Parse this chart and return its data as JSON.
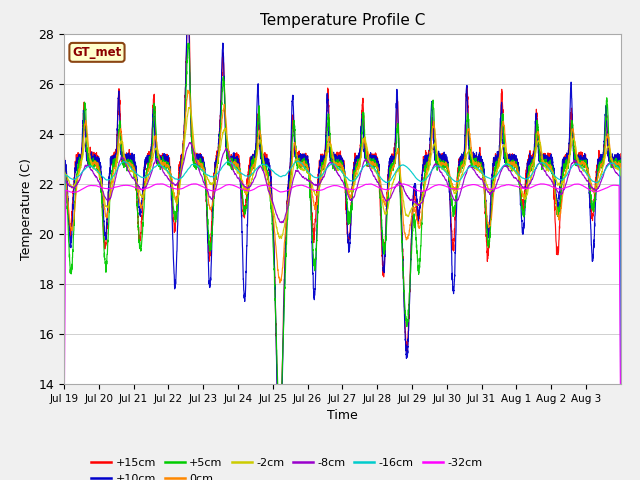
{
  "title": "Temperature Profile C",
  "xlabel": "Time",
  "ylabel": "Temperature (C)",
  "ylim": [
    14,
    28
  ],
  "n_days": 16,
  "base_temp": 23.0,
  "xtick_labels": [
    "Jul 19",
    "Jul 20",
    "Jul 21",
    "Jul 22",
    "Jul 23",
    "Jul 24",
    "Jul 25",
    "Jul 26",
    "Jul 27",
    "Jul 28",
    "Jul 29",
    "Jul 30",
    "Jul 31",
    "Aug 1",
    "Aug 2",
    "Aug 3"
  ],
  "legend_label": "GT_met",
  "legend_bg": "#ffffcc",
  "legend_border": "#8b4513",
  "fig_bg": "#f0f0f0",
  "plot_bg": "#e8e8e8",
  "series_colors": {
    "+15cm": "#ff0000",
    "+10cm": "#0000cc",
    "+5cm": "#00cc00",
    "0cm": "#ff8800",
    "-2cm": "#cccc00",
    "-8cm": "#9900cc",
    "-16cm": "#00cccc",
    "-32cm": "#ff00ff"
  }
}
